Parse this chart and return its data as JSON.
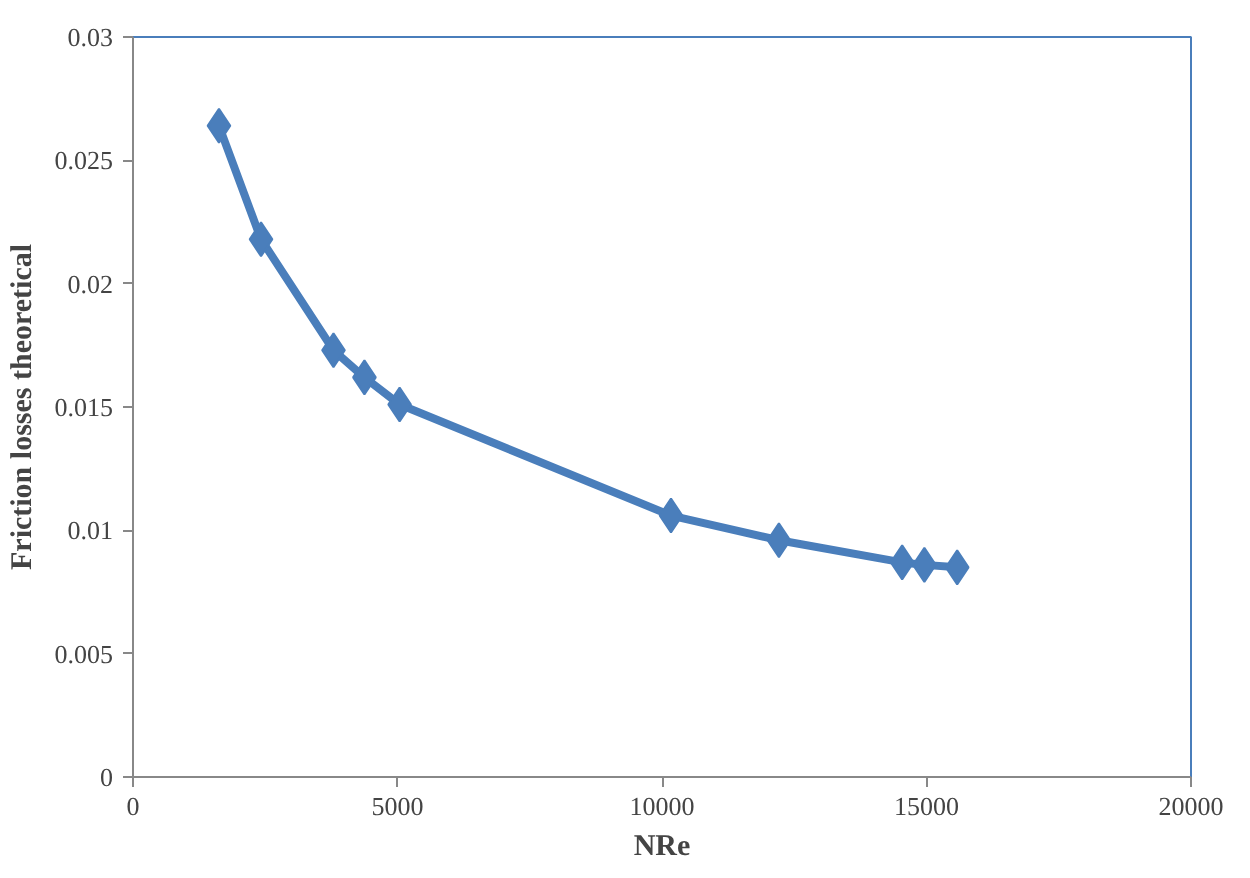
{
  "chart_data": {
    "type": "line",
    "xlabel": "NRe",
    "ylabel": "Friction losses theoretical",
    "x": [
      1625,
      2420,
      3790,
      4375,
      5040,
      10170,
      12210,
      14540,
      14960,
      15580
    ],
    "series": [
      {
        "color": "#4a7ebb",
        "values": [
          0.0264,
          0.0218,
          0.0173,
          0.0162,
          0.0151,
          0.0106,
          0.0096,
          0.0087,
          0.0086,
          0.0085
        ]
      }
    ],
    "xlim": [
      0,
      20000
    ],
    "ylim": [
      0,
      0.03
    ],
    "xticks": [
      0,
      5000,
      10000,
      15000,
      20000
    ],
    "yticks": [
      {
        "value": 0,
        "label": "0"
      },
      {
        "value": 0.005,
        "label": "0.005"
      },
      {
        "value": 0.01,
        "label": "0.01"
      },
      {
        "value": 0.015,
        "label": "0.015"
      },
      {
        "value": 0.02,
        "label": "0.02"
      },
      {
        "value": 0.025,
        "label": "0.025"
      },
      {
        "value": 0.03,
        "label": "0.03"
      }
    ],
    "marker": "diamond",
    "line_style": "solid",
    "grid": false
  }
}
